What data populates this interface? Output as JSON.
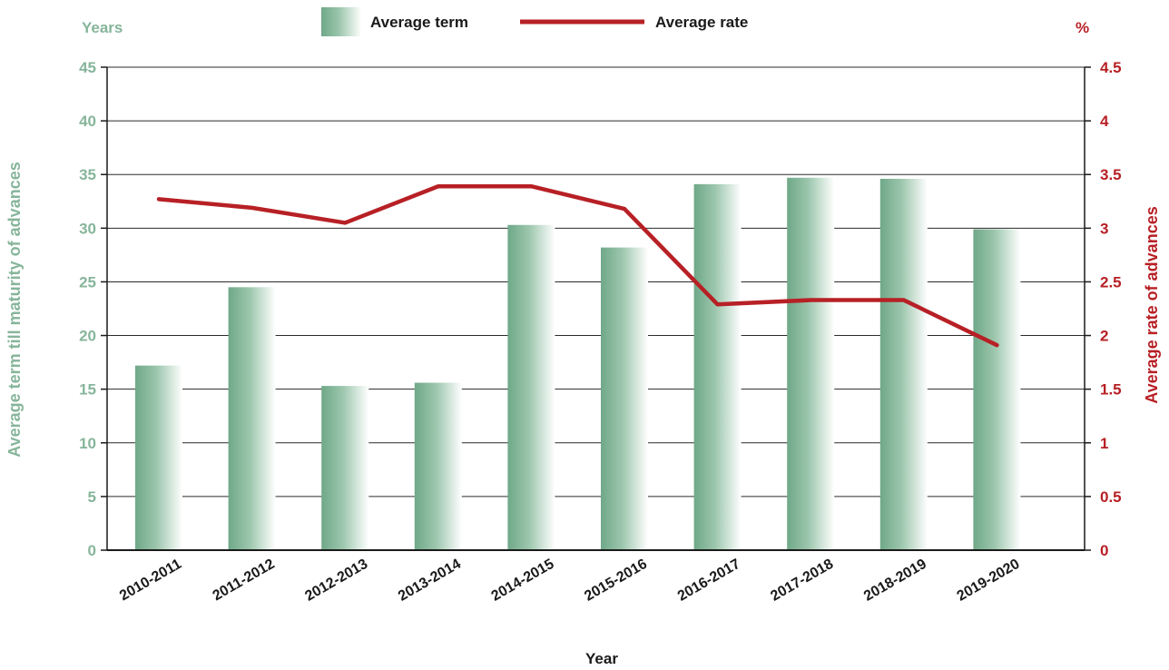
{
  "chart_data": {
    "type": "bar",
    "categories": [
      "2010-2011",
      "2011-2012",
      "2012-2013",
      "2013-2014",
      "2014-2015",
      "2015-2016",
      "2016-2017",
      "2017-2018",
      "2018-2019",
      "2019-2020"
    ],
    "series": [
      {
        "name": "Average term",
        "type": "bar",
        "axis": "left",
        "values": [
          17.2,
          24.5,
          15.3,
          15.6,
          30.3,
          28.2,
          34.1,
          34.7,
          34.6,
          29.9
        ]
      },
      {
        "name": "Average rate",
        "type": "line",
        "axis": "right",
        "values": [
          3.27,
          3.19,
          3.05,
          3.39,
          3.39,
          3.18,
          2.29,
          2.33,
          2.33,
          1.91
        ]
      }
    ],
    "xlabel": "Year",
    "ylabel_left": "Average term till maturity of advances",
    "ylabel_right": "Average rate of advances",
    "unit_left": "Years",
    "unit_right": "%",
    "ylim_left": [
      0,
      45
    ],
    "ylim_right": [
      0,
      4.5
    ],
    "yticks_left": [
      "0",
      "5",
      "10",
      "15",
      "20",
      "25",
      "30",
      "35",
      "40",
      "45"
    ],
    "yticks_right": [
      "0",
      "0.5",
      "1",
      "1.5",
      "2",
      "2.5",
      "3",
      "3.5",
      "4",
      "4.5"
    ],
    "grid": true,
    "legend_position": "top",
    "colors": {
      "bar": "#86b59a",
      "line": "#b72025",
      "left_axis_text": "#86b59a",
      "right_axis_text": "#b72025"
    }
  }
}
